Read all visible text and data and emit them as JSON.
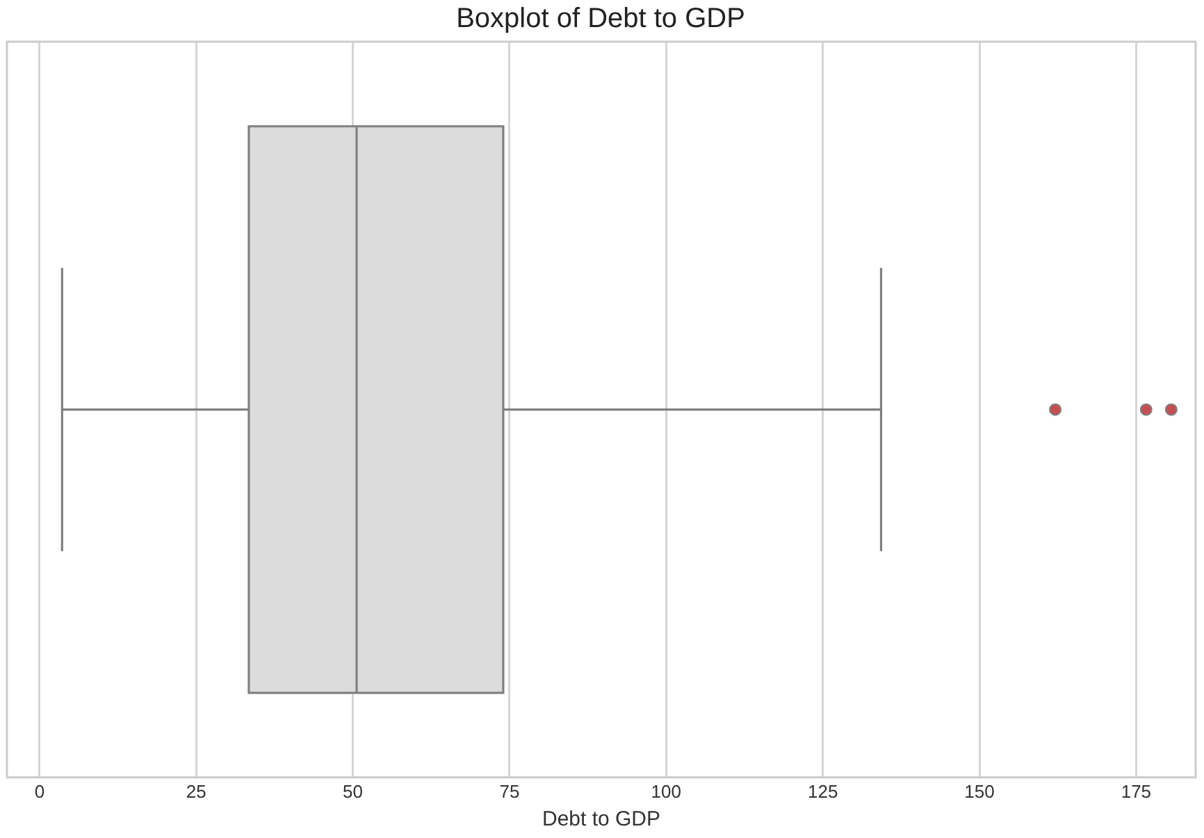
{
  "chart_data": {
    "type": "box",
    "title": "Boxplot of Debt to GDP",
    "xlabel": "Debt to GDP",
    "orientation": "horizontal",
    "categories": [
      null
    ],
    "series": [
      {
        "color": "#dcdcdc",
        "boxes": [
          {
            "low": 3.6,
            "q1": 33.4,
            "median": 50.6,
            "q3": 74.0,
            "high": 134.3,
            "outliers": [
              162.1,
              176.6,
              180.6
            ]
          }
        ]
      }
    ],
    "xlim": [
      -5.2,
      184.5
    ],
    "xticks": [
      0,
      25,
      50,
      75,
      100,
      125,
      150,
      175
    ],
    "grid": "x",
    "legend": false
  }
}
